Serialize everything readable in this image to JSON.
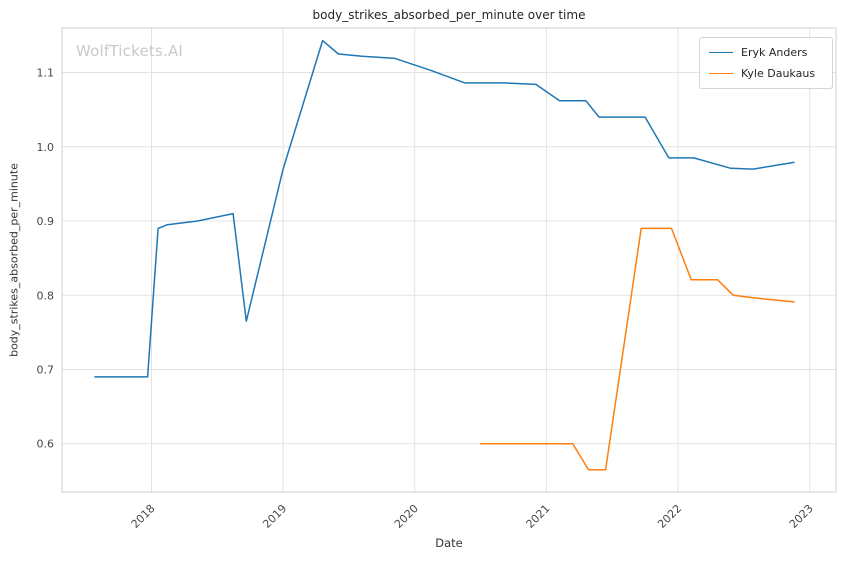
{
  "watermark": "WolfTickets.AI",
  "chart_data": {
    "type": "line",
    "title": "body_strikes_absorbed_per_minute over time",
    "xlabel": "Date",
    "ylabel": "body_strikes_absorbed_per_minute",
    "grid": true,
    "legend_position": "upper right",
    "xlim": [
      2017.32,
      2023.2
    ],
    "ylim": [
      0.535,
      1.16
    ],
    "x_ticks": [
      2018,
      2019,
      2020,
      2021,
      2022,
      2023
    ],
    "y_ticks": [
      0.6,
      0.7,
      0.8,
      0.9,
      1.0,
      1.1
    ],
    "colors": {
      "grid": "#e3e3e3",
      "spine": "#cfcfcf",
      "tick_text": "#484848"
    },
    "series": [
      {
        "name": "Eryk Anders",
        "color": "#1f77b4",
        "x": [
          2017.57,
          2017.97,
          2018.05,
          2018.12,
          2018.35,
          2018.62,
          2018.72,
          2019.0,
          2019.3,
          2019.42,
          2019.6,
          2019.85,
          2020.12,
          2020.38,
          2020.68,
          2020.92,
          2021.1,
          2021.3,
          2021.4,
          2021.75,
          2021.93,
          2022.12,
          2022.4,
          2022.57,
          2022.88
        ],
        "y": [
          0.69,
          0.69,
          0.89,
          0.895,
          0.9,
          0.91,
          0.765,
          0.97,
          1.143,
          1.125,
          1.122,
          1.119,
          1.103,
          1.086,
          1.086,
          1.084,
          1.062,
          1.062,
          1.04,
          1.04,
          0.985,
          0.985,
          0.971,
          0.97,
          0.979
        ]
      },
      {
        "name": "Kyle Daukaus",
        "color": "#ff7f0e",
        "x": [
          2020.5,
          2020.78,
          2021.05,
          2021.2,
          2021.32,
          2021.45,
          2021.72,
          2021.95,
          2022.1,
          2022.3,
          2022.42,
          2022.6,
          2022.88
        ],
        "y": [
          0.6,
          0.6,
          0.6,
          0.6,
          0.565,
          0.565,
          0.89,
          0.89,
          0.821,
          0.821,
          0.8,
          0.796,
          0.791
        ]
      }
    ]
  }
}
